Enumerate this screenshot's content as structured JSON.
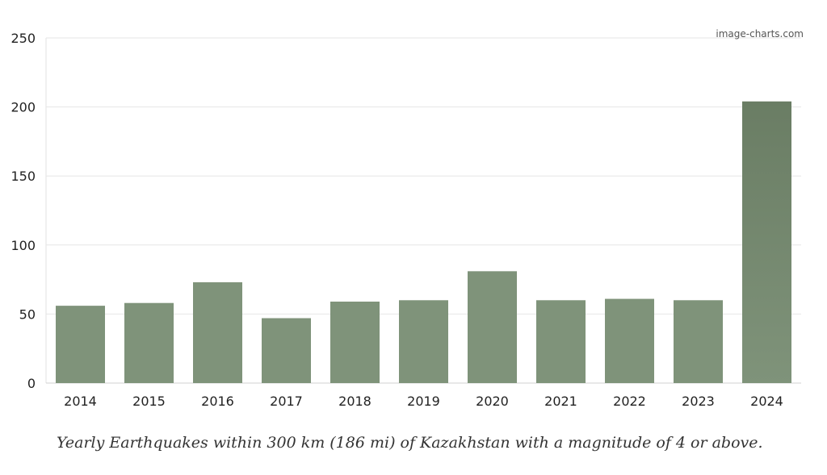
{
  "chart_data": {
    "type": "bar",
    "categories": [
      "2014",
      "2015",
      "2016",
      "2017",
      "2018",
      "2019",
      "2020",
      "2021",
      "2022",
      "2023",
      "2024"
    ],
    "values": [
      56,
      58,
      73,
      47,
      59,
      60,
      81,
      60,
      61,
      60,
      204
    ],
    "ylim": [
      0,
      250
    ],
    "yticks": [
      0,
      50,
      100,
      150,
      200,
      250
    ],
    "ytick_labels": [
      "0",
      "50",
      "100",
      "150",
      "200",
      "250"
    ],
    "grid": true,
    "bar_color": "#7f937a",
    "bar_color_top": "#6a7d64",
    "watermark": "image-charts.com"
  },
  "caption": "Yearly Earthquakes within 300 km (186 mi) of Kazakhstan with a magnitude of 4 or above."
}
